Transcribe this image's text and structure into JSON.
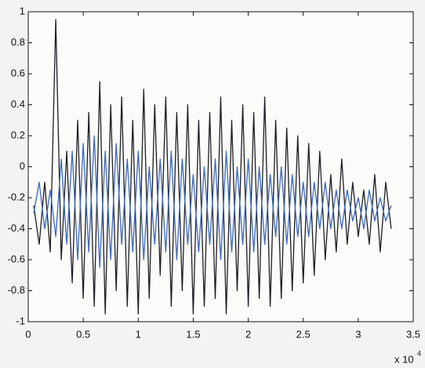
{
  "chart_data": {
    "type": "line",
    "x": [
      0.05,
      0.1,
      0.15,
      0.2,
      0.25,
      0.3,
      0.35,
      0.4,
      0.45,
      0.5,
      0.55,
      0.6,
      0.65,
      0.7,
      0.75,
      0.8,
      0.85,
      0.9,
      0.95,
      1.0,
      1.05,
      1.1,
      1.15,
      1.2,
      1.25,
      1.3,
      1.35,
      1.4,
      1.45,
      1.5,
      1.55,
      1.6,
      1.65,
      1.7,
      1.75,
      1.8,
      1.85,
      1.9,
      1.95,
      2.0,
      2.05,
      2.1,
      2.15,
      2.2,
      2.25,
      2.3,
      2.35,
      2.4,
      2.45,
      2.5,
      2.55,
      2.6,
      2.65,
      2.7,
      2.75,
      2.8,
      2.85,
      2.9,
      2.95,
      3.0,
      3.05,
      3.1,
      3.15,
      3.2,
      3.25,
      3.3
    ],
    "series": [
      {
        "color": "#1e1e22",
        "values": [
          -0.25,
          -0.5,
          -0.1,
          -0.55,
          0.95,
          -0.6,
          0.1,
          -0.75,
          0.3,
          -0.85,
          0.35,
          -0.9,
          0.55,
          -0.95,
          0.4,
          -0.8,
          0.45,
          -0.9,
          0.3,
          -0.95,
          0.5,
          -0.85,
          0.4,
          -0.7,
          0.45,
          -0.9,
          0.35,
          -0.8,
          0.4,
          -0.95,
          0.3,
          -0.9,
          0.35,
          -0.85,
          0.45,
          -0.95,
          0.3,
          -0.8,
          0.4,
          -0.9,
          0.35,
          -0.85,
          0.45,
          -0.9,
          0.3,
          -0.85,
          0.25,
          -0.8,
          0.2,
          -0.75,
          0.15,
          -0.7,
          0.1,
          -0.6,
          -0.05,
          -0.55,
          0.05,
          -0.5,
          -0.1,
          -0.45,
          -0.15,
          -0.5,
          -0.05,
          -0.55,
          -0.1,
          -0.4
        ]
      },
      {
        "color": "#3a68c0",
        "values": [
          -0.3,
          -0.1,
          -0.4,
          -0.15,
          -0.45,
          0.05,
          -0.5,
          0.1,
          -0.6,
          0.15,
          -0.55,
          0.2,
          -0.65,
          0.1,
          -0.6,
          0.15,
          -0.5,
          0.05,
          -0.55,
          0.1,
          -0.6,
          0.0,
          -0.5,
          0.05,
          -0.55,
          0.1,
          -0.6,
          0.05,
          -0.5,
          -0.05,
          -0.55,
          0.0,
          -0.5,
          0.05,
          -0.6,
          0.1,
          -0.55,
          0.0,
          -0.5,
          0.05,
          -0.55,
          0.0,
          -0.5,
          -0.05,
          -0.45,
          0.0,
          -0.5,
          -0.05,
          -0.45,
          -0.1,
          -0.45,
          -0.1,
          -0.4,
          -0.1,
          -0.4,
          -0.15,
          -0.4,
          -0.15,
          -0.35,
          -0.2,
          -0.4,
          -0.15,
          -0.35,
          -0.2,
          -0.35,
          -0.25
        ]
      }
    ],
    "xlim": [
      0,
      3.5
    ],
    "xticks": [
      0,
      0.5,
      1,
      1.5,
      2,
      2.5,
      3,
      3.5
    ],
    "ylim": [
      -1,
      1
    ],
    "yticks": [
      -1,
      -0.8,
      -0.6,
      -0.4,
      -0.2,
      0,
      0.2,
      0.4,
      0.6,
      0.8,
      1
    ],
    "x_multiplier": {
      "base": "x 10",
      "exponent": "4"
    }
  }
}
